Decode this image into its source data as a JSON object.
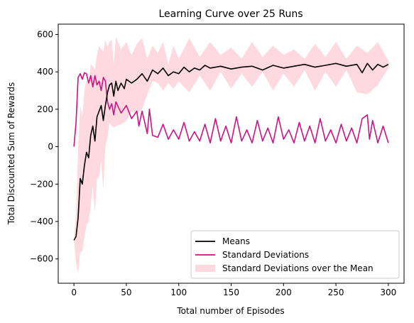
{
  "chart_data": {
    "type": "line",
    "title": "Learning Curve over 25 Runs",
    "xlabel": "Total number of Episodes",
    "ylabel": "Total Discounted Sum of Rewards",
    "xlim": [
      -15,
      315
    ],
    "ylim": [
      -730,
      655
    ],
    "xticks": [
      0,
      50,
      100,
      150,
      200,
      250,
      300
    ],
    "yticks": [
      -600,
      -400,
      -200,
      0,
      200,
      400,
      600
    ],
    "xtick_labels": [
      "0",
      "50",
      "100",
      "150",
      "200",
      "250",
      "300"
    ],
    "ytick_labels": [
      "−600",
      "−400",
      "−200",
      "0",
      "200",
      "400",
      "600"
    ],
    "legend_position": "lower right",
    "colors": {
      "mean": "#000000",
      "std": "#c71585",
      "band": "#ffc0cb"
    },
    "series": [
      {
        "name": "Means",
        "x": [
          0,
          2,
          4,
          6,
          8,
          10,
          12,
          14,
          16,
          18,
          20,
          22,
          24,
          26,
          28,
          30,
          32,
          34,
          36,
          38,
          40,
          42,
          45,
          48,
          50,
          55,
          60,
          65,
          70,
          75,
          80,
          85,
          90,
          95,
          100,
          105,
          110,
          115,
          120,
          125,
          130,
          140,
          150,
          160,
          170,
          180,
          190,
          200,
          210,
          220,
          230,
          240,
          250,
          260,
          270,
          275,
          280,
          285,
          290,
          295,
          300
        ],
        "values": [
          -500,
          -480,
          -380,
          -170,
          -200,
          -100,
          -30,
          -60,
          60,
          110,
          30,
          160,
          190,
          220,
          140,
          220,
          290,
          330,
          340,
          270,
          350,
          300,
          340,
          310,
          360,
          340,
          360,
          390,
          350,
          410,
          390,
          420,
          380,
          400,
          390,
          425,
          400,
          420,
          410,
          435,
          420,
          430,
          415,
          425,
          430,
          410,
          435,
          420,
          430,
          440,
          425,
          435,
          445,
          430,
          440,
          395,
          445,
          410,
          440,
          425,
          440
        ]
      },
      {
        "name": "Standard Deviations",
        "x": [
          0,
          2,
          4,
          6,
          8,
          10,
          12,
          14,
          16,
          18,
          20,
          22,
          24,
          26,
          28,
          30,
          32,
          34,
          36,
          38,
          40,
          45,
          50,
          55,
          60,
          62,
          65,
          70,
          72,
          75,
          80,
          85,
          90,
          95,
          100,
          105,
          110,
          115,
          120,
          125,
          130,
          135,
          140,
          145,
          150,
          155,
          160,
          165,
          170,
          175,
          180,
          185,
          190,
          195,
          200,
          205,
          210,
          215,
          220,
          225,
          230,
          235,
          240,
          245,
          250,
          255,
          260,
          265,
          270,
          275,
          280,
          282,
          285,
          290,
          295,
          300
        ],
        "values": [
          0,
          130,
          370,
          390,
          360,
          395,
          390,
          340,
          380,
          320,
          380,
          330,
          350,
          300,
          370,
          350,
          240,
          200,
          230,
          170,
          240,
          180,
          220,
          150,
          190,
          110,
          190,
          70,
          200,
          60,
          50,
          120,
          40,
          90,
          40,
          130,
          30,
          80,
          30,
          120,
          20,
          150,
          30,
          110,
          20,
          160,
          30,
          90,
          20,
          140,
          30,
          100,
          20,
          160,
          40,
          90,
          20,
          130,
          30,
          110,
          20,
          150,
          30,
          90,
          20,
          120,
          30,
          100,
          20,
          150,
          170,
          40,
          140,
          20,
          110,
          20
        ]
      }
    ],
    "band": {
      "name": "Standard Deviations over the Mean",
      "x": [
        0,
        2,
        4,
        6,
        8,
        10,
        12,
        14,
        16,
        18,
        20,
        22,
        24,
        26,
        28,
        30,
        32,
        34,
        36,
        38,
        40,
        45,
        50,
        55,
        60,
        65,
        70,
        75,
        80,
        85,
        90,
        95,
        100,
        110,
        120,
        130,
        140,
        150,
        160,
        170,
        180,
        190,
        200,
        210,
        220,
        230,
        240,
        250,
        260,
        270,
        280,
        290,
        300
      ],
      "upper": [
        -500,
        -350,
        -10,
        220,
        160,
        300,
        360,
        330,
        440,
        430,
        410,
        490,
        540,
        520,
        510,
        570,
        530,
        560,
        570,
        440,
        590,
        520,
        560,
        490,
        550,
        580,
        470,
        540,
        500,
        560,
        440,
        540,
        470,
        580,
        480,
        560,
        490,
        530,
        470,
        560,
        480,
        540,
        490,
        520,
        470,
        550,
        480,
        560,
        470,
        540,
        500,
        560,
        460
      ],
      "lower": [
        -500,
        -620,
        -680,
        -560,
        -560,
        -480,
        -420,
        -400,
        -320,
        -210,
        -350,
        -170,
        -160,
        -80,
        -230,
        0,
        50,
        130,
        110,
        100,
        110,
        120,
        140,
        190,
        170,
        200,
        280,
        350,
        340,
        300,
        340,
        310,
        350,
        290,
        380,
        300,
        400,
        310,
        390,
        320,
        400,
        300,
        390,
        320,
        410,
        300,
        400,
        320,
        410,
        290,
        280,
        330,
        420
      ]
    }
  }
}
